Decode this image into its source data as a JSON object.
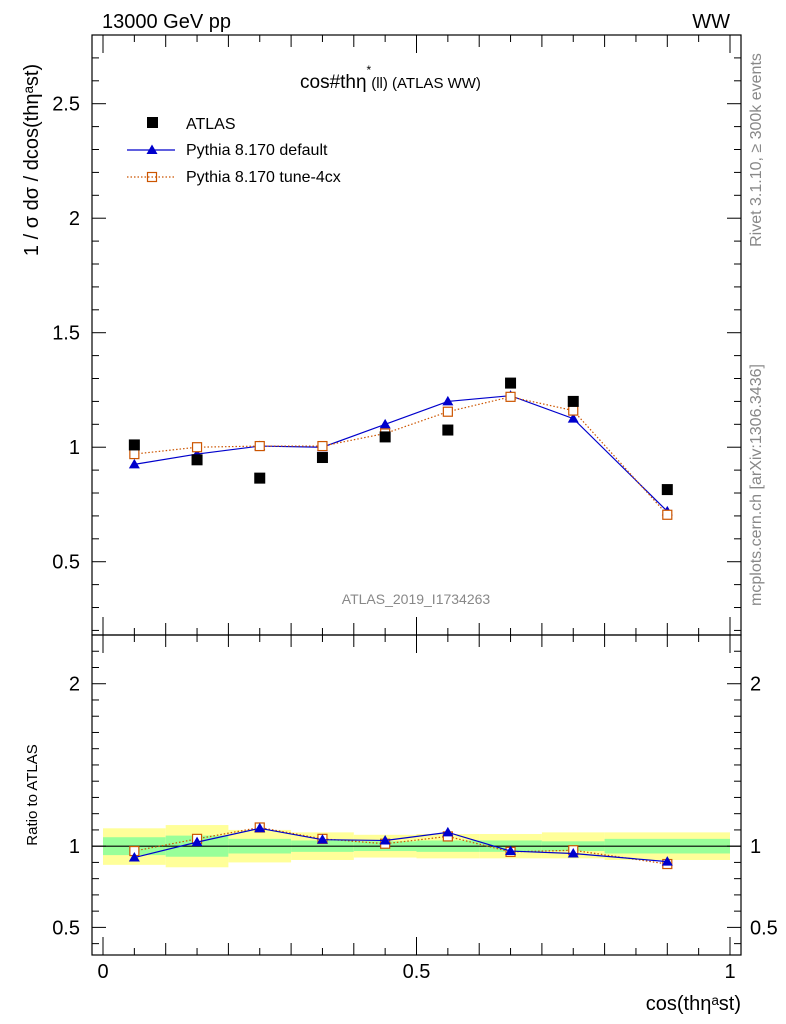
{
  "header": {
    "left": "13000 GeV pp",
    "right": "WW"
  },
  "side": {
    "rivet": "Rivet 3.1.10, ≥ 300k events",
    "mcplots": "mcplots.cern.ch [arXiv:1306.3436]"
  },
  "chart_data": [
    {
      "type": "scatter",
      "title": "cos#thη* (ll) (ATLAS WW)",
      "title_main": "cos#thη",
      "title_sup": "*",
      "title_sub": "(ll) (ATLAS WW)",
      "watermark": "ATLAS_2019_I1734263",
      "ylabel": "1 / σ  dσ / dcos(thηᵃst)",
      "xlim": [
        0,
        1
      ],
      "ylim": [
        0.18,
        2.8
      ],
      "yticks": [
        0.5,
        1,
        1.5,
        2,
        2.5
      ],
      "ytick_labels": [
        "0.5",
        "1",
        "1.5",
        "2",
        "2.5"
      ],
      "x": [
        0.05,
        0.15,
        0.25,
        0.35,
        0.45,
        0.55,
        0.65,
        0.75,
        0.9
      ],
      "series": [
        {
          "name": "ATLAS",
          "color": "#000000",
          "marker": "square",
          "values": [
            1.01,
            0.945,
            0.865,
            0.955,
            1.045,
            1.075,
            1.28,
            1.2,
            0.815
          ]
        },
        {
          "name": "Pythia 8.170 default",
          "color": "#0000cc",
          "marker": "triangle",
          "line": "solid",
          "values": [
            0.925,
            0.97,
            1.005,
            1.0,
            1.1,
            1.2,
            1.225,
            1.125,
            0.72
          ]
        },
        {
          "name": "Pythia 8.170 tune-4cx",
          "color": "#cc5500",
          "marker": "open-square",
          "line": "dotted",
          "values": [
            0.97,
            1.0,
            1.005,
            1.005,
            1.06,
            1.155,
            1.22,
            1.16,
            0.705
          ]
        }
      ],
      "legend_position": "top-left"
    },
    {
      "type": "line",
      "ylabel": "Ratio to ATLAS",
      "xlabel": "cos(thηᵃst)",
      "xlim": [
        0,
        1
      ],
      "ylim": [
        0.33,
        2.3
      ],
      "xticks": [
        0,
        0.5,
        1
      ],
      "xtick_labels": [
        "0",
        "0.5",
        "1"
      ],
      "yticks": [
        0.5,
        1,
        2
      ],
      "ytick_labels": [
        "0.5",
        "1",
        "2"
      ],
      "bands": {
        "edges": [
          0,
          0.1,
          0.2,
          0.3,
          0.4,
          0.5,
          0.6,
          0.7,
          0.8,
          1.0
        ],
        "inner_color": "#99ff99",
        "outer_color": "#ffff99",
        "inner_lo": [
          0.945,
          0.935,
          0.955,
          0.965,
          0.97,
          0.965,
          0.965,
          0.97,
          0.955
        ],
        "inner_hi": [
          1.055,
          1.065,
          1.045,
          1.035,
          1.03,
          1.035,
          1.035,
          1.03,
          1.045
        ],
        "outer_lo": [
          0.885,
          0.87,
          0.9,
          0.915,
          0.93,
          0.925,
          0.925,
          0.925,
          0.915
        ],
        "outer_hi": [
          1.11,
          1.13,
          1.1,
          1.085,
          1.07,
          1.075,
          1.075,
          1.085,
          1.085
        ]
      },
      "x": [
        0.05,
        0.15,
        0.25,
        0.35,
        0.45,
        0.55,
        0.65,
        0.75,
        0.9
      ],
      "series": [
        {
          "name": "Pythia 8.170 default",
          "color": "#0000cc",
          "marker": "triangle",
          "line": "solid",
          "values": [
            0.93,
            1.025,
            1.11,
            1.04,
            1.035,
            1.085,
            0.97,
            0.955,
            0.905
          ]
        },
        {
          "name": "Pythia 8.170 tune-4cx",
          "color": "#cc5500",
          "marker": "open-square",
          "line": "dotted",
          "values": [
            0.97,
            1.045,
            1.115,
            1.045,
            1.015,
            1.06,
            0.965,
            0.975,
            0.89
          ]
        }
      ]
    }
  ]
}
